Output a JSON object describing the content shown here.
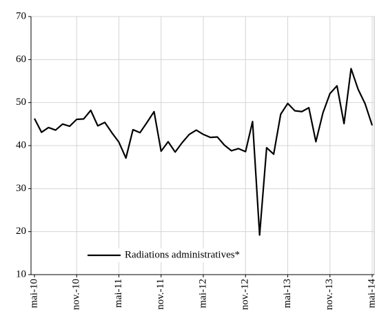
{
  "chart_data": {
    "type": "line",
    "categories": [
      "mai-10",
      null,
      null,
      null,
      null,
      null,
      "nov.-10",
      null,
      null,
      null,
      null,
      null,
      "mai-11",
      null,
      null,
      null,
      null,
      null,
      "nov.-11",
      null,
      null,
      null,
      null,
      null,
      "mai-12",
      null,
      null,
      null,
      null,
      null,
      "nov.-12",
      null,
      null,
      null,
      null,
      null,
      "mai-13",
      null,
      null,
      null,
      null,
      null,
      "nov.-13",
      null,
      null,
      null,
      null,
      null,
      "mai-14"
    ],
    "series": [
      {
        "name": "Radiations administratives*",
        "color": "#000000",
        "values": [
          46.3,
          43.1,
          44.2,
          43.6,
          45.0,
          44.5,
          46.1,
          46.2,
          48.2,
          44.6,
          45.4,
          43.0,
          40.8,
          37.1,
          43.7,
          43.0,
          45.4,
          47.9,
          38.7,
          40.9,
          38.5,
          40.7,
          42.6,
          43.6,
          42.6,
          41.9,
          42.0,
          40.1,
          38.8,
          39.3,
          38.6,
          45.6,
          19.2,
          39.5,
          38.0,
          47.3,
          49.8,
          48.1,
          47.9,
          48.8,
          40.9,
          47.6,
          52.1,
          53.9,
          45.1,
          57.9,
          53.1,
          49.7,
          44.7
        ]
      }
    ],
    "ylim": [
      10,
      70
    ],
    "yticks": [
      10,
      20,
      30,
      40,
      50,
      60,
      70
    ],
    "grid": true,
    "legend": "bottom-left"
  }
}
